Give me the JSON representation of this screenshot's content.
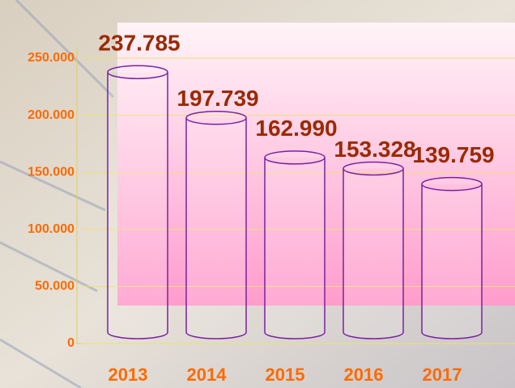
{
  "chart_data": {
    "type": "bar",
    "categories": [
      "2013",
      "2014",
      "2015",
      "2016",
      "2017"
    ],
    "values": [
      237785,
      197739,
      162990,
      153328,
      139759
    ],
    "value_labels": [
      "237.785",
      "197.739",
      "162.990",
      "153.328",
      "139.759"
    ],
    "color": "#7b1fa2",
    "ylim": [
      0,
      250000
    ],
    "yticks": [
      0,
      {
        "value": 50000,
        "label": "50.000"
      },
      {
        "value": 100000,
        "label": "100.000"
      },
      {
        "value": 150000,
        "label": "150.000"
      },
      {
        "value": 200000,
        "label": "200.000"
      },
      {
        "value": 250000,
        "label": "250.000"
      }
    ],
    "grid": true
  }
}
